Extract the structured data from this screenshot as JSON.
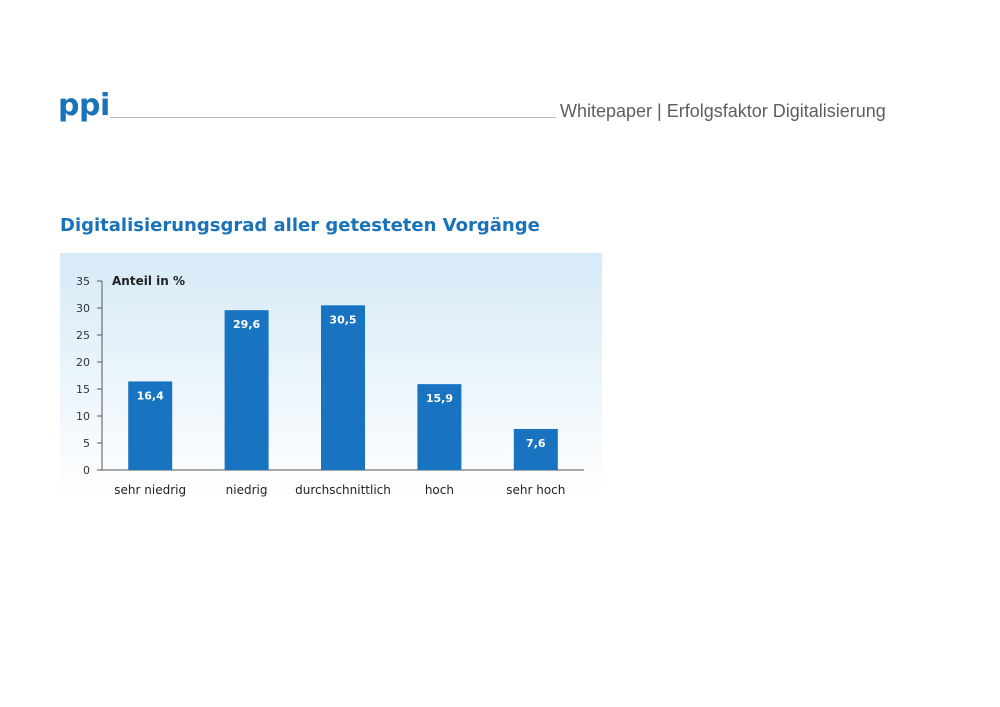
{
  "header": {
    "logo_text": "ppi",
    "document_title": "Whitepaper | Erfolgsfaktor Digitalisierung"
  },
  "colors": {
    "brand": "#1a72b9",
    "bar": "#1874c1",
    "panel_top": "#d6eaf7",
    "panel_bottom": "#ffffff",
    "text": "#222222"
  },
  "chart_data": {
    "type": "bar",
    "title": "Digitalisierungsgrad aller getesteten Vorgänge",
    "xlabel": "",
    "ylabel": "Anteil in %",
    "categories": [
      "sehr niedrig",
      "niedrig",
      "durchschnittlich",
      "hoch",
      "sehr hoch"
    ],
    "values": [
      16.4,
      29.6,
      30.5,
      15.9,
      7.6
    ],
    "value_labels": [
      "16,4",
      "29,6",
      "30,5",
      "15,9",
      "7,6"
    ],
    "ylim": [
      0,
      35
    ],
    "yticks": [
      0,
      5,
      10,
      15,
      20,
      25,
      30,
      35
    ],
    "grid": false,
    "legend": "none"
  }
}
